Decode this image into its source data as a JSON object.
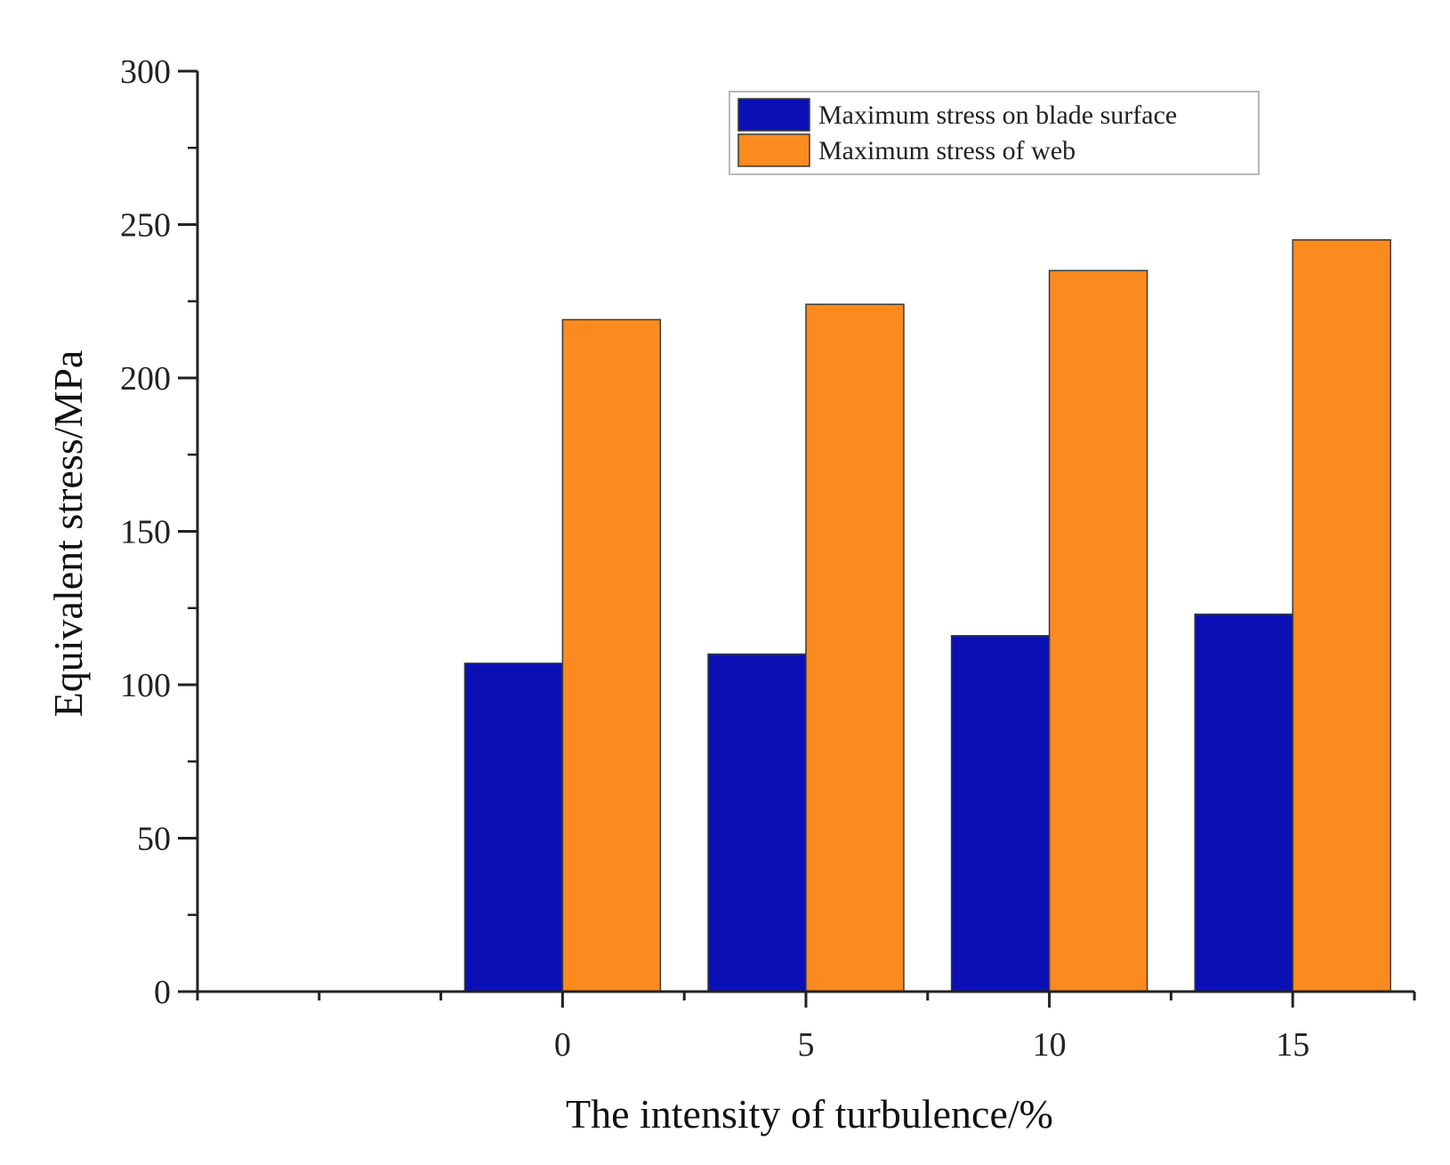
{
  "chart_data": {
    "type": "bar",
    "title": "",
    "xlabel": "The intensity of turbulence/%",
    "ylabel": "Equivalent stress/MPa",
    "categories": [
      "0",
      "5",
      "10",
      "15"
    ],
    "series": [
      {
        "name": "Maximum stress on blade surface",
        "color": "#0a10b4",
        "values": [
          107,
          110,
          116,
          123
        ]
      },
      {
        "name": "Maximum stress of web",
        "color": "#fb8a1f",
        "values": [
          219,
          224,
          235,
          245
        ]
      }
    ],
    "ylim": [
      0,
      300
    ],
    "yticks": [
      0,
      50,
      100,
      150,
      200,
      250,
      300
    ],
    "ytick_labels": [
      "0",
      "50",
      "100",
      "150",
      "200",
      "250",
      "300"
    ],
    "grid": false,
    "legend_position": "top-right"
  }
}
